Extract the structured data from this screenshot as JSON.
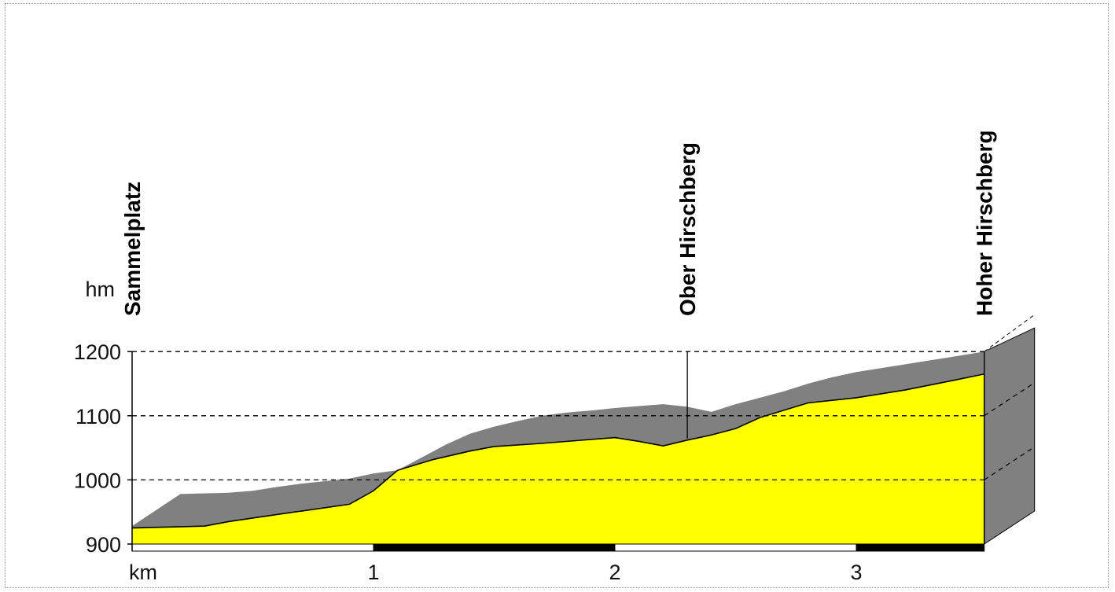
{
  "chart_data": {
    "type": "area",
    "title": "",
    "xlabel": "km",
    "ylabel": "hm",
    "xlim": [
      0,
      3.5
    ],
    "ylim": [
      900,
      1200
    ],
    "x_ticks": [
      {
        "value": 1,
        "label": "1"
      },
      {
        "value": 2,
        "label": "2"
      },
      {
        "value": 3,
        "label": "3"
      }
    ],
    "y_ticks": [
      {
        "value": 900,
        "label": "900"
      },
      {
        "value": 1000,
        "label": "1000"
      },
      {
        "value": 1100,
        "label": "1100"
      },
      {
        "value": 1200,
        "label": "1200"
      }
    ],
    "grid": "horizontal dashed",
    "colors": {
      "profile_fill": "#ffff00",
      "relief": "#808080",
      "outline": "#000000",
      "km_bar_dark": "#000000",
      "km_bar_light": "#ffffff"
    },
    "series": [
      {
        "x": [
          0,
          0.3,
          0.4,
          0.6,
          0.9,
          1.0,
          1.1,
          1.25,
          1.4,
          1.5,
          1.7,
          1.9,
          2.0,
          2.1,
          2.2,
          2.3,
          2.4,
          2.5,
          2.6,
          2.8,
          3.0,
          3.2,
          3.4,
          3.53
        ],
        "values": [
          925,
          928,
          935,
          946,
          962,
          983,
          1015,
          1032,
          1045,
          1052,
          1057,
          1063,
          1066,
          1060,
          1053,
          1062,
          1070,
          1080,
          1097,
          1120,
          1128,
          1140,
          1155,
          1165
        ]
      },
      {
        "x": [
          0,
          0.2,
          0.4,
          0.5,
          0.6,
          0.7,
          0.9,
          1.0,
          1.1,
          1.2,
          1.3,
          1.4,
          1.5,
          1.6,
          1.7,
          1.8,
          1.9,
          2.0,
          2.1,
          2.2,
          2.3,
          2.4,
          2.5,
          2.6,
          2.7,
          2.8,
          2.9,
          3.0,
          3.2,
          3.4,
          3.53
        ],
        "values": [
          928,
          978,
          980,
          983,
          989,
          994,
          1002,
          1010,
          1015,
          1035,
          1055,
          1072,
          1083,
          1092,
          1100,
          1105,
          1108,
          1112,
          1115,
          1118,
          1114,
          1106,
          1118,
          1128,
          1138,
          1150,
          1160,
          1168,
          1180,
          1192,
          1200
        ]
      }
    ],
    "km_bar": [
      {
        "from": 0,
        "to": 1,
        "shade": "light"
      },
      {
        "from": 1,
        "to": 2,
        "shade": "dark"
      },
      {
        "from": 2,
        "to": 3,
        "shade": "light"
      },
      {
        "from": 3,
        "to": 3.53,
        "shade": "dark"
      }
    ],
    "annotations": [
      {
        "text": "Sammelplatz",
        "x": 0,
        "value": 925
      },
      {
        "text": "Ober Hirschberg",
        "x": 2.3,
        "value": 1062
      },
      {
        "text": "Hoher Hirschberg",
        "x": 3.53,
        "value": 1165
      }
    ]
  }
}
